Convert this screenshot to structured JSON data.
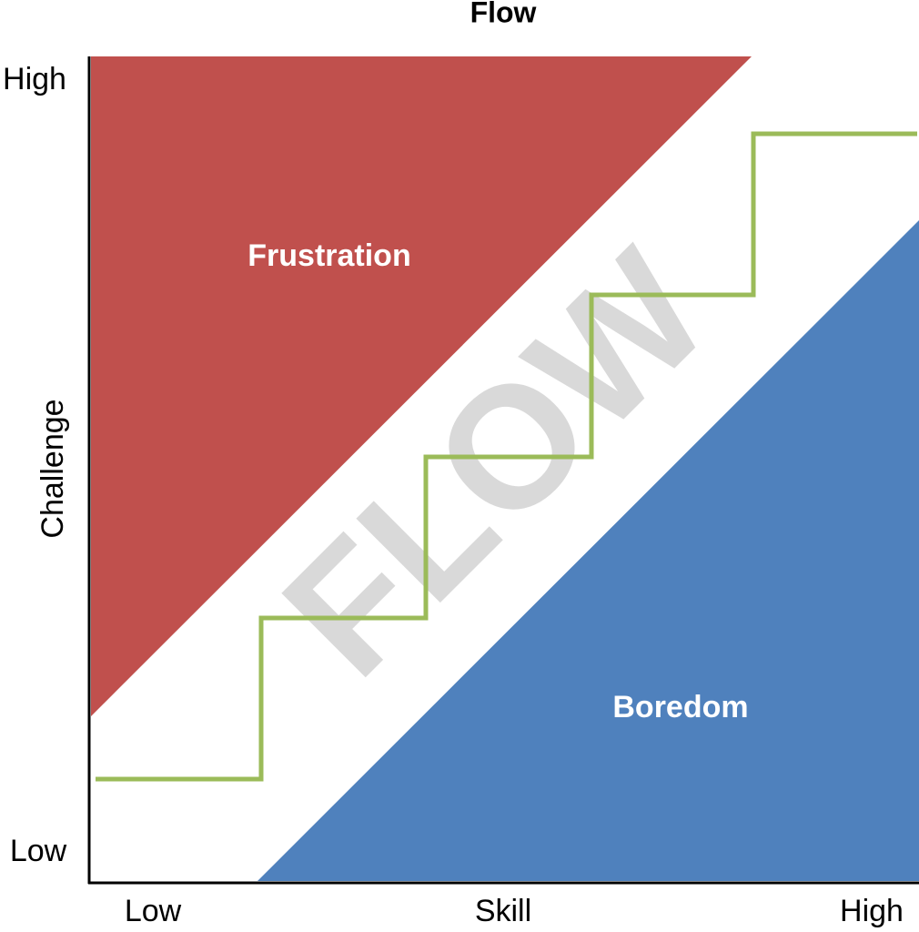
{
  "title": "Flow",
  "y_axis": {
    "label": "Challenge",
    "high": "High",
    "low": "Low"
  },
  "x_axis": {
    "label": "Skill",
    "low": "Low",
    "high": "High"
  },
  "regions": {
    "frustration": "Frustration",
    "flow": "FLOW",
    "boredom": "Boredom"
  }
}
